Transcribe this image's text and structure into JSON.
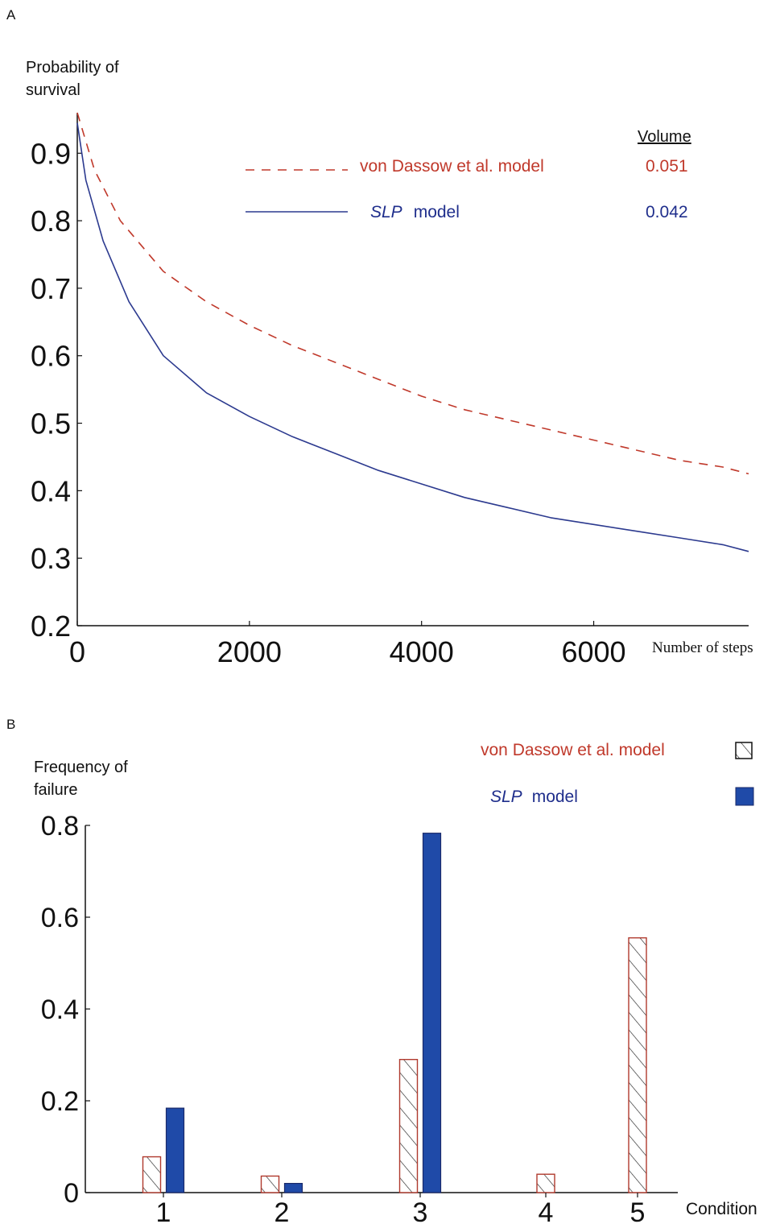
{
  "panel_a": {
    "label": "A",
    "ylabel_lines": [
      "Probability of",
      "survival"
    ],
    "xlabel": "Number of steps",
    "legend_header": "Volume",
    "colors": {
      "red": "#c0392b",
      "blue": "#2c3a8f"
    }
  },
  "panel_b": {
    "label": "B",
    "ylabel_lines": [
      "Frequency of",
      "failure"
    ],
    "xlabel": "Condition",
    "colors": {
      "hatch": "#b03a2e",
      "fill": "#1f4aa8",
      "edge": "#1a2a6a"
    }
  },
  "chart_data": [
    {
      "type": "line",
      "title": "",
      "xlabel": "Number of steps",
      "ylabel": "Probability of survival",
      "xlim": [
        0,
        7800
      ],
      "ylim": [
        0.2,
        0.96
      ],
      "x_ticks": [
        0,
        2000,
        4000,
        6000
      ],
      "y_ticks": [
        0.2,
        0.3,
        0.4,
        0.5,
        0.6,
        0.7,
        0.8,
        0.9
      ],
      "series": [
        {
          "name": "von Dassow et al. model",
          "volume": "0.051",
          "style": "dashed",
          "x": [
            0,
            200,
            500,
            1000,
            1500,
            2000,
            2500,
            3000,
            3500,
            4000,
            4500,
            5000,
            5500,
            6000,
            6500,
            7000,
            7500,
            7800
          ],
          "y": [
            0.96,
            0.875,
            0.8,
            0.725,
            0.68,
            0.645,
            0.615,
            0.59,
            0.565,
            0.54,
            0.52,
            0.505,
            0.49,
            0.475,
            0.46,
            0.445,
            0.435,
            0.425
          ]
        },
        {
          "name": "SLP model",
          "volume": "0.042",
          "style": "solid",
          "x": [
            0,
            100,
            300,
            600,
            1000,
            1500,
            2000,
            2500,
            3000,
            3500,
            4000,
            4500,
            5000,
            5500,
            6000,
            6500,
            7000,
            7500,
            7800
          ],
          "y": [
            0.945,
            0.86,
            0.77,
            0.68,
            0.6,
            0.545,
            0.51,
            0.48,
            0.455,
            0.43,
            0.41,
            0.39,
            0.375,
            0.36,
            0.35,
            0.34,
            0.33,
            0.32,
            0.31
          ]
        }
      ]
    },
    {
      "type": "bar",
      "title": "",
      "xlabel": "Condition",
      "ylabel": "Frequency of failure",
      "ylim": [
        0,
        0.8
      ],
      "y_ticks": [
        0,
        0.2,
        0.4,
        0.6,
        0.8
      ],
      "y_tick_labels": [
        "0",
        "0.2",
        "0.4",
        "0.6",
        "0.8"
      ],
      "categories": [
        "1",
        "2",
        "3",
        "4",
        "5"
      ],
      "series": [
        {
          "name": "von Dassow et al. model",
          "style": "hatched",
          "values": [
            0.078,
            0.036,
            0.29,
            0.04,
            0.555
          ]
        },
        {
          "name": "SLP model",
          "style": "filled",
          "values": [
            0.184,
            0.02,
            0.783,
            0,
            0
          ]
        }
      ]
    }
  ]
}
